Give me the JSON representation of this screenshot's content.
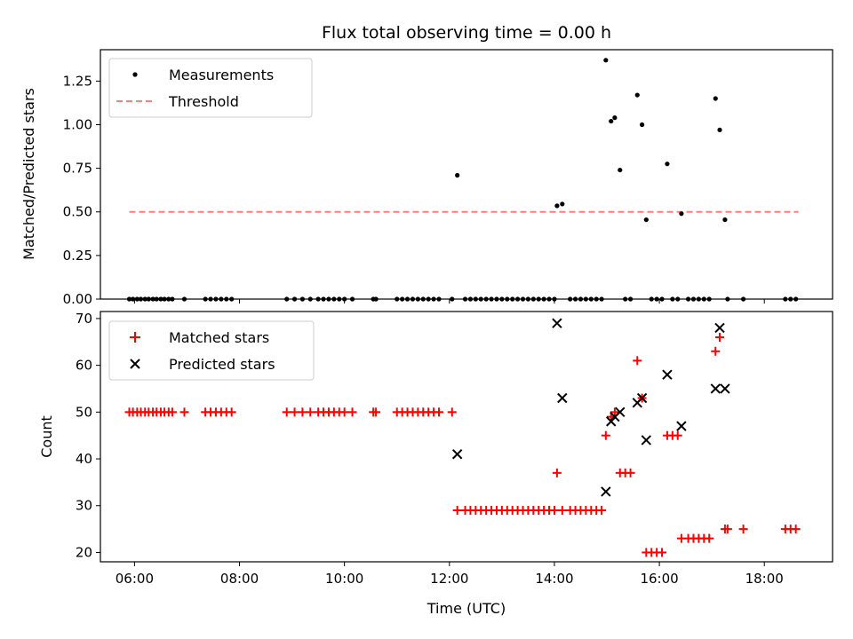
{
  "title": "Flux total observing time = 0.00 h",
  "colors": {
    "measurement": "#000000",
    "threshold": "#ff7f7f",
    "matched": "#ff0000",
    "predicted": "#000000"
  },
  "chart_data": [
    {
      "type": "scatter",
      "ylabel": "Matched/Predicted stars",
      "xlim": [
        5.35,
        19.3
      ],
      "ylim": [
        0,
        1.43
      ],
      "yticks": [
        "0.00",
        "0.25",
        "0.50",
        "0.75",
        "1.00",
        "1.25"
      ],
      "ytick_values": [
        0,
        0.25,
        0.5,
        0.75,
        1.0,
        1.25
      ],
      "legend": {
        "position": "top-left",
        "entries": [
          "Measurements",
          "Threshold"
        ]
      },
      "threshold": {
        "value": 0.5,
        "x_start": 5.9,
        "x_end": 18.65
      },
      "series": [
        {
          "name": "Measurements",
          "points": [
            [
              5.9,
              0
            ],
            [
              5.97,
              0
            ],
            [
              6.05,
              0
            ],
            [
              6.12,
              0
            ],
            [
              6.2,
              0
            ],
            [
              6.27,
              0
            ],
            [
              6.35,
              0
            ],
            [
              6.42,
              0
            ],
            [
              6.5,
              0
            ],
            [
              6.57,
              0
            ],
            [
              6.65,
              0
            ],
            [
              6.72,
              0
            ],
            [
              6.95,
              0
            ],
            [
              7.35,
              0
            ],
            [
              7.45,
              0
            ],
            [
              7.55,
              0
            ],
            [
              7.65,
              0
            ],
            [
              7.75,
              0
            ],
            [
              7.85,
              0
            ],
            [
              8.9,
              0
            ],
            [
              9.05,
              0
            ],
            [
              9.2,
              0
            ],
            [
              9.35,
              0
            ],
            [
              9.5,
              0
            ],
            [
              9.6,
              0
            ],
            [
              9.7,
              0
            ],
            [
              9.8,
              0
            ],
            [
              9.9,
              0
            ],
            [
              10.0,
              0
            ],
            [
              10.15,
              0
            ],
            [
              10.55,
              0
            ],
            [
              10.6,
              0
            ],
            [
              11.0,
              0
            ],
            [
              11.1,
              0
            ],
            [
              11.2,
              0
            ],
            [
              11.3,
              0
            ],
            [
              11.4,
              0
            ],
            [
              11.5,
              0
            ],
            [
              11.6,
              0
            ],
            [
              11.7,
              0
            ],
            [
              11.8,
              0
            ],
            [
              12.05,
              0
            ],
            [
              12.15,
              0.71
            ],
            [
              12.3,
              0
            ],
            [
              12.4,
              0
            ],
            [
              12.5,
              0
            ],
            [
              12.6,
              0
            ],
            [
              12.7,
              0
            ],
            [
              12.8,
              0
            ],
            [
              12.9,
              0
            ],
            [
              13.0,
              0
            ],
            [
              13.1,
              0
            ],
            [
              13.2,
              0
            ],
            [
              13.3,
              0
            ],
            [
              13.4,
              0
            ],
            [
              13.5,
              0
            ],
            [
              13.6,
              0
            ],
            [
              13.7,
              0
            ],
            [
              13.8,
              0
            ],
            [
              13.9,
              0
            ],
            [
              14.0,
              0
            ],
            [
              14.05,
              0.535
            ],
            [
              14.15,
              0.545
            ],
            [
              14.3,
              0
            ],
            [
              14.4,
              0
            ],
            [
              14.5,
              0
            ],
            [
              14.6,
              0
            ],
            [
              14.7,
              0
            ],
            [
              14.8,
              0
            ],
            [
              14.9,
              0
            ],
            [
              14.98,
              1.37
            ],
            [
              15.08,
              1.02
            ],
            [
              15.15,
              1.04
            ],
            [
              15.25,
              0.74
            ],
            [
              15.35,
              0
            ],
            [
              15.45,
              0
            ],
            [
              15.58,
              1.17
            ],
            [
              15.67,
              1.0
            ],
            [
              15.75,
              0.455
            ],
            [
              15.85,
              0
            ],
            [
              15.95,
              0
            ],
            [
              16.05,
              0
            ],
            [
              16.15,
              0.775
            ],
            [
              16.25,
              0
            ],
            [
              16.35,
              0
            ],
            [
              16.42,
              0.49
            ],
            [
              16.55,
              0
            ],
            [
              16.65,
              0
            ],
            [
              16.75,
              0
            ],
            [
              16.85,
              0
            ],
            [
              16.95,
              0
            ],
            [
              17.07,
              1.15
            ],
            [
              17.15,
              0.97
            ],
            [
              17.25,
              0.455
            ],
            [
              17.3,
              0
            ],
            [
              17.6,
              0
            ],
            [
              18.4,
              0
            ],
            [
              18.5,
              0
            ],
            [
              18.6,
              0
            ]
          ]
        }
      ]
    },
    {
      "type": "scatter",
      "xlabel": "Time (UTC)",
      "ylabel": "Count",
      "xlim": [
        5.35,
        19.3
      ],
      "ylim": [
        18,
        71.5
      ],
      "xticks": [
        "06:00",
        "08:00",
        "10:00",
        "12:00",
        "14:00",
        "16:00",
        "18:00"
      ],
      "xtick_values": [
        6,
        8,
        10,
        12,
        14,
        16,
        18
      ],
      "yticks": [
        "20",
        "30",
        "40",
        "50",
        "60",
        "70"
      ],
      "ytick_values": [
        20,
        30,
        40,
        50,
        60,
        70
      ],
      "legend": {
        "position": "top-left",
        "entries": [
          "Matched stars",
          "Predicted stars"
        ]
      },
      "series": [
        {
          "name": "Matched stars",
          "points": [
            [
              5.9,
              50
            ],
            [
              5.97,
              50
            ],
            [
              6.05,
              50
            ],
            [
              6.12,
              50
            ],
            [
              6.2,
              50
            ],
            [
              6.27,
              50
            ],
            [
              6.35,
              50
            ],
            [
              6.42,
              50
            ],
            [
              6.5,
              50
            ],
            [
              6.57,
              50
            ],
            [
              6.65,
              50
            ],
            [
              6.72,
              50
            ],
            [
              6.95,
              50
            ],
            [
              7.35,
              50
            ],
            [
              7.45,
              50
            ],
            [
              7.55,
              50
            ],
            [
              7.65,
              50
            ],
            [
              7.75,
              50
            ],
            [
              7.85,
              50
            ],
            [
              8.9,
              50
            ],
            [
              9.05,
              50
            ],
            [
              9.2,
              50
            ],
            [
              9.35,
              50
            ],
            [
              9.5,
              50
            ],
            [
              9.6,
              50
            ],
            [
              9.7,
              50
            ],
            [
              9.8,
              50
            ],
            [
              9.9,
              50
            ],
            [
              10.0,
              50
            ],
            [
              10.15,
              50
            ],
            [
              10.55,
              50
            ],
            [
              10.6,
              50
            ],
            [
              11.0,
              50
            ],
            [
              11.1,
              50
            ],
            [
              11.2,
              50
            ],
            [
              11.3,
              50
            ],
            [
              11.4,
              50
            ],
            [
              11.5,
              50
            ],
            [
              11.6,
              50
            ],
            [
              11.7,
              50
            ],
            [
              11.8,
              50
            ],
            [
              12.05,
              50
            ],
            [
              12.15,
              29
            ],
            [
              12.3,
              29
            ],
            [
              12.4,
              29
            ],
            [
              12.5,
              29
            ],
            [
              12.6,
              29
            ],
            [
              12.7,
              29
            ],
            [
              12.8,
              29
            ],
            [
              12.9,
              29
            ],
            [
              13.0,
              29
            ],
            [
              13.1,
              29
            ],
            [
              13.2,
              29
            ],
            [
              13.3,
              29
            ],
            [
              13.4,
              29
            ],
            [
              13.5,
              29
            ],
            [
              13.6,
              29
            ],
            [
              13.7,
              29
            ],
            [
              13.8,
              29
            ],
            [
              13.9,
              29
            ],
            [
              14.0,
              29
            ],
            [
              14.05,
              37
            ],
            [
              14.15,
              29
            ],
            [
              14.3,
              29
            ],
            [
              14.4,
              29
            ],
            [
              14.5,
              29
            ],
            [
              14.6,
              29
            ],
            [
              14.7,
              29
            ],
            [
              14.8,
              29
            ],
            [
              14.9,
              29
            ],
            [
              14.98,
              45
            ],
            [
              15.08,
              49
            ],
            [
              15.15,
              50
            ],
            [
              15.25,
              37
            ],
            [
              15.35,
              37
            ],
            [
              15.45,
              37
            ],
            [
              15.58,
              61
            ],
            [
              15.67,
              53
            ],
            [
              15.75,
              20
            ],
            [
              15.85,
              20
            ],
            [
              15.95,
              20
            ],
            [
              16.05,
              20
            ],
            [
              16.15,
              45
            ],
            [
              16.25,
              45
            ],
            [
              16.35,
              45
            ],
            [
              16.42,
              23
            ],
            [
              16.55,
              23
            ],
            [
              16.65,
              23
            ],
            [
              16.75,
              23
            ],
            [
              16.85,
              23
            ],
            [
              16.95,
              23
            ],
            [
              17.07,
              63
            ],
            [
              17.15,
              66
            ],
            [
              17.25,
              25
            ],
            [
              17.3,
              25
            ],
            [
              17.6,
              25
            ],
            [
              18.4,
              25
            ],
            [
              18.5,
              25
            ],
            [
              18.6,
              25
            ]
          ]
        },
        {
          "name": "Predicted stars",
          "points": [
            [
              12.15,
              41
            ],
            [
              14.05,
              69
            ],
            [
              14.15,
              53
            ],
            [
              14.98,
              33
            ],
            [
              15.08,
              48
            ],
            [
              15.15,
              49
            ],
            [
              15.25,
              50
            ],
            [
              15.58,
              52
            ],
            [
              15.67,
              53
            ],
            [
              15.75,
              44
            ],
            [
              16.15,
              58
            ],
            [
              16.42,
              47
            ],
            [
              17.07,
              55
            ],
            [
              17.15,
              68
            ],
            [
              17.25,
              55
            ]
          ]
        }
      ]
    }
  ]
}
